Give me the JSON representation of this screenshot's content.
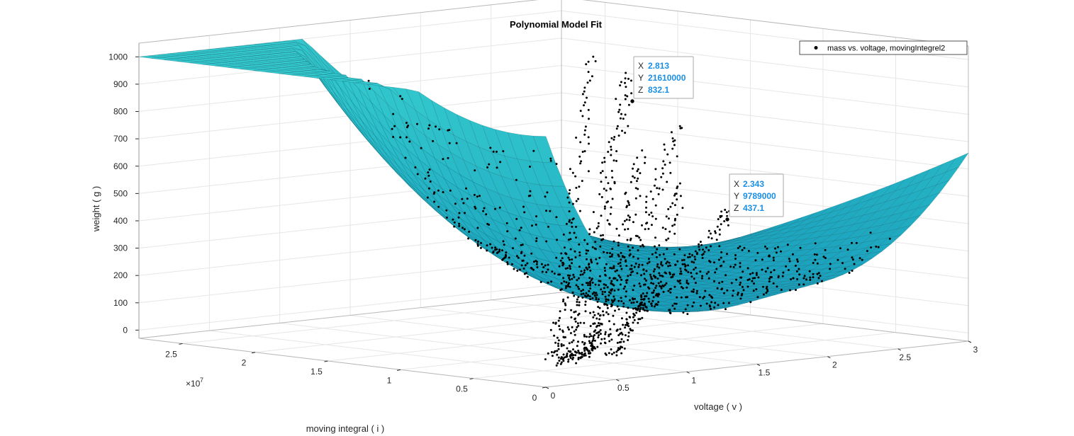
{
  "chart_data": {
    "type": "surface",
    "title": "Polynomial Model Fit",
    "xlabel": "voltage ( v )",
    "ylabel": "moving integral ( i )",
    "zlabel": "weight ( g )",
    "x_ticks": [
      "0",
      "0.5",
      "1",
      "1.5",
      "2",
      "2.5",
      "3"
    ],
    "x_tick_values": [
      0,
      0.5,
      1,
      1.5,
      2,
      2.5,
      3
    ],
    "y_ticks": [
      "0",
      "0.5",
      "1",
      "1.5",
      "2",
      "2.5"
    ],
    "y_tick_values": [
      0,
      0.5,
      1,
      1.5,
      2,
      2.5
    ],
    "y_exponent": "×10",
    "y_exponent_power": "7",
    "z_ticks": [
      "0",
      "100",
      "200",
      "300",
      "400",
      "500",
      "600",
      "700",
      "800",
      "900",
      "1000"
    ],
    "z_tick_values": [
      0,
      100,
      200,
      300,
      400,
      500,
      600,
      700,
      800,
      900,
      1000
    ],
    "xlim": [
      0,
      3
    ],
    "ylim": [
      0,
      28000000
    ],
    "zlim": [
      -30,
      1050
    ],
    "grid": true,
    "surface_color": "#1fb8c8",
    "surface_edge_color": "#0b5560",
    "scatter_color": "#000000",
    "legend": {
      "location": "top-right",
      "entries": [
        "mass vs. voltage, movingIntegrel2"
      ]
    },
    "datatips": [
      {
        "x_key": "X",
        "x": "2.813",
        "y_key": "Y",
        "y": "21610000",
        "z_key": "Z",
        "z": "832.1"
      },
      {
        "x_key": "X",
        "x": "2.343",
        "y_key": "Y",
        "y": "9789000",
        "z_key": "Z",
        "z": "437.1"
      }
    ]
  }
}
